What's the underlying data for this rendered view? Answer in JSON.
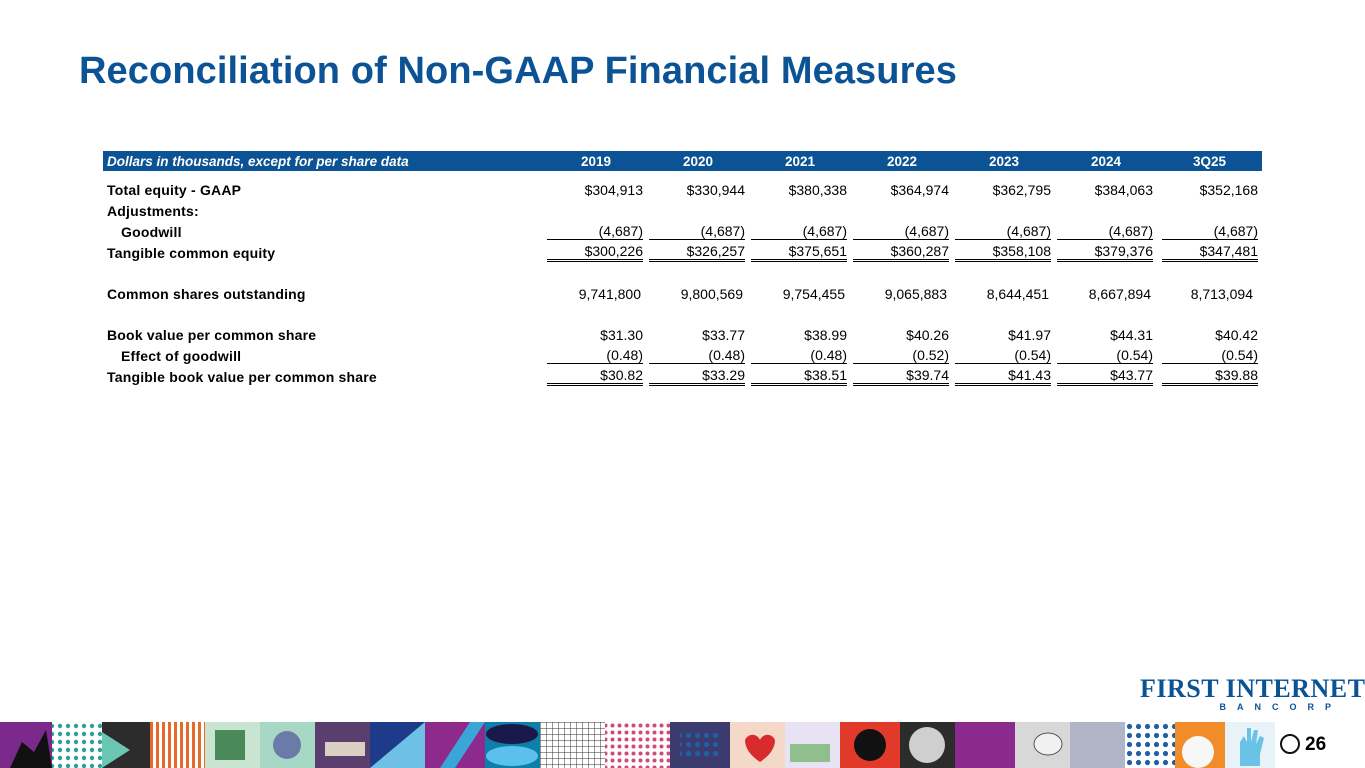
{
  "title": "Reconciliation of Non-GAAP Financial Measures",
  "table": {
    "header_label": "Dollars in thousands, except for per share data",
    "columns": [
      "2019",
      "2020",
      "2021",
      "2022",
      "2023",
      "2024",
      "3Q25"
    ],
    "rows": [
      {
        "label": "Total equity - GAAP",
        "values": [
          "$304,913",
          "$330,944",
          "$380,338",
          "$364,974",
          "$362,795",
          "$384,063",
          "$352,168"
        ]
      },
      {
        "label": "Adjustments:",
        "values": []
      },
      {
        "label": "Goodwill",
        "values": [
          "(4,687)",
          "(4,687)",
          "(4,687)",
          "(4,687)",
          "(4,687)",
          "(4,687)",
          "(4,687)"
        ]
      },
      {
        "label": "Tangible common equity",
        "values": [
          "$300,226",
          "$326,257",
          "$375,651",
          "$360,287",
          "$358,108",
          "$379,376",
          "$347,481"
        ]
      },
      {
        "label": "Common shares outstanding",
        "values": [
          "9,741,800",
          "9,800,569",
          "9,754,455",
          "9,065,883",
          "8,644,451",
          "8,667,894",
          "8,713,094"
        ]
      },
      {
        "label": "Book value per common share",
        "values": [
          "$31.30",
          "$33.77",
          "$38.99",
          "$40.26",
          "$41.97",
          "$44.31",
          "$40.42"
        ]
      },
      {
        "label": "Effect of goodwill",
        "values": [
          "(0.48)",
          "(0.48)",
          "(0.48)",
          "(0.52)",
          "(0.54)",
          "(0.54)",
          "(0.54)"
        ]
      },
      {
        "label": "Tangible book value per common share",
        "values": [
          "$30.82",
          "$33.29",
          "$38.51",
          "$39.74",
          "$41.43",
          "$43.77",
          "$39.88"
        ]
      }
    ]
  },
  "logo": {
    "main": "FIRST INTERNET",
    "sub": "BANCORP"
  },
  "page_number": "26",
  "colors": {
    "brand_blue": "#0b5394",
    "logo_green": "#3a6f2a"
  }
}
